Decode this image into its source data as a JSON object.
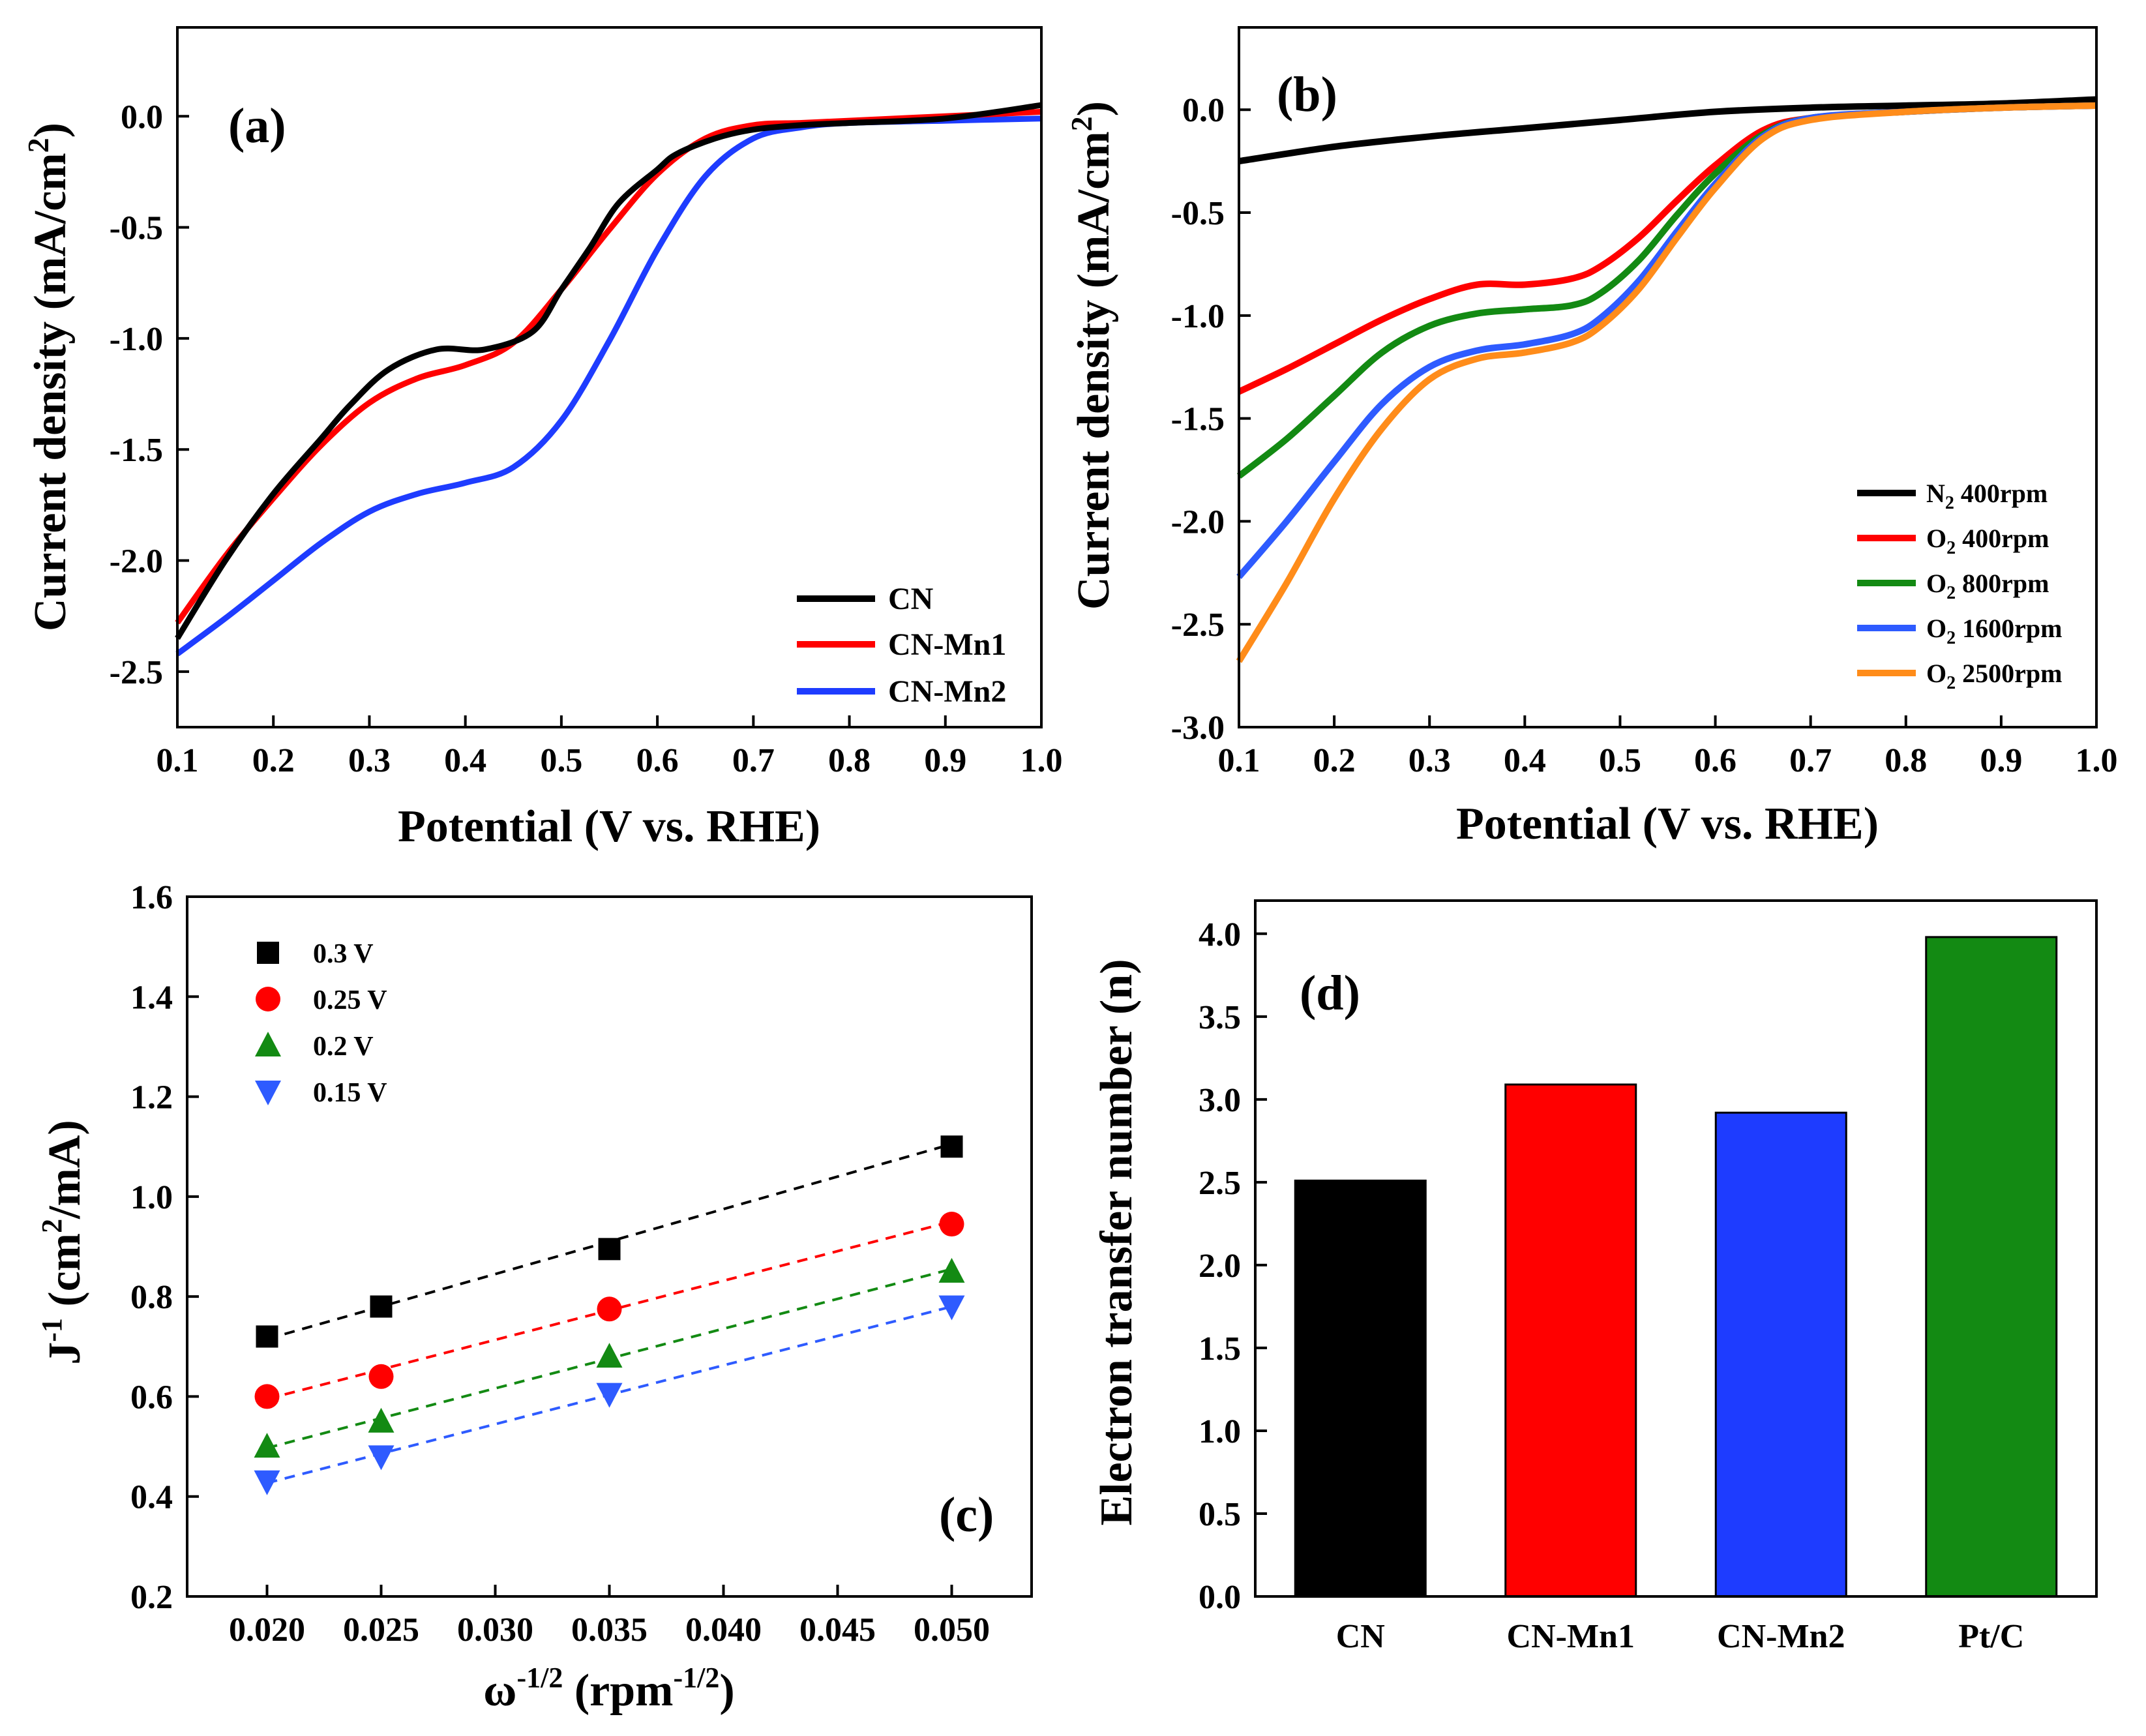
{
  "chart_data": [
    {
      "panel": "(a)",
      "type": "line",
      "xlabel": "Potential (V vs. RHE)",
      "ylabel": "Current density (mA/cm2)",
      "ylabel_text": "Current density (mA/cm",
      "ylabel_sup": "2",
      "ylabel_end": ")",
      "xlim": [
        0.1,
        1.0
      ],
      "ylim": [
        -2.75,
        0.4
      ],
      "xticks": [
        "0.1",
        "0.2",
        "0.3",
        "0.4",
        "0.5",
        "0.6",
        "0.7",
        "0.8",
        "0.9",
        "1.0"
      ],
      "xtick_values": [
        0.1,
        0.2,
        0.3,
        0.4,
        0.5,
        0.6,
        0.7,
        0.8,
        0.9,
        1.0
      ],
      "yticks": [
        "0.0",
        "-0.5",
        "-1.0",
        "-1.5",
        "-2.0",
        "-2.5"
      ],
      "ytick_values": [
        0.0,
        -0.5,
        -1.0,
        -1.5,
        -2.0,
        -2.5
      ],
      "legend_position": "bottom-right",
      "series": [
        {
          "name": "CN",
          "color": "#000000",
          "x": [
            0.1,
            0.15,
            0.2,
            0.25,
            0.28,
            0.32,
            0.37,
            0.42,
            0.47,
            0.5,
            0.53,
            0.56,
            0.6,
            0.62,
            0.66,
            0.7,
            0.75,
            0.8,
            0.9,
            1.0
          ],
          "y": [
            -2.35,
            -2.0,
            -1.7,
            -1.45,
            -1.3,
            -1.14,
            -1.05,
            -1.05,
            -0.97,
            -0.78,
            -0.59,
            -0.39,
            -0.24,
            -0.17,
            -0.1,
            -0.06,
            -0.04,
            -0.03,
            -0.01,
            0.05
          ]
        },
        {
          "name": "CN-Mn1",
          "color": "#ff0000",
          "x": [
            0.1,
            0.15,
            0.2,
            0.25,
            0.3,
            0.35,
            0.4,
            0.45,
            0.5,
            0.55,
            0.6,
            0.65,
            0.7,
            0.75,
            0.8,
            0.9,
            1.0
          ],
          "y": [
            -2.28,
            -1.98,
            -1.72,
            -1.48,
            -1.29,
            -1.18,
            -1.12,
            -1.02,
            -0.78,
            -0.51,
            -0.26,
            -0.1,
            -0.04,
            -0.03,
            -0.02,
            0.0,
            0.02
          ]
        },
        {
          "name": "CN-Mn2",
          "color": "#1e3cff",
          "x": [
            0.1,
            0.15,
            0.2,
            0.25,
            0.3,
            0.35,
            0.4,
            0.45,
            0.5,
            0.55,
            0.6,
            0.65,
            0.7,
            0.75,
            0.8,
            0.9,
            1.0
          ],
          "y": [
            -2.42,
            -2.26,
            -2.09,
            -1.92,
            -1.78,
            -1.7,
            -1.65,
            -1.58,
            -1.37,
            -1.01,
            -0.6,
            -0.27,
            -0.1,
            -0.05,
            -0.03,
            -0.02,
            -0.01
          ]
        }
      ]
    },
    {
      "panel": "(b)",
      "type": "line",
      "xlabel": "Potential (V vs. RHE)",
      "ylabel": "Current density (mA/cm2)",
      "ylabel_text": "Current density (mA/cm",
      "ylabel_sup": "2",
      "ylabel_end": ")",
      "xlim": [
        0.1,
        1.0
      ],
      "ylim": [
        -3.0,
        0.4
      ],
      "xticks": [
        "0.1",
        "0.2",
        "0.3",
        "0.4",
        "0.5",
        "0.6",
        "0.7",
        "0.8",
        "0.9",
        "1.0"
      ],
      "xtick_values": [
        0.1,
        0.2,
        0.3,
        0.4,
        0.5,
        0.6,
        0.7,
        0.8,
        0.9,
        1.0
      ],
      "yticks": [
        "0.0",
        "-0.5",
        "-1.0",
        "-1.5",
        "-2.0",
        "-2.5",
        "-3.0"
      ],
      "ytick_values": [
        0.0,
        -0.5,
        -1.0,
        -1.5,
        -2.0,
        -2.5,
        -3.0
      ],
      "legend_position": "bottom-right",
      "series": [
        {
          "name": "N2 400rpm",
          "label_gas": "N",
          "label_sub": "2",
          "label_rest": " 400rpm",
          "color": "#000000",
          "x": [
            0.1,
            0.2,
            0.3,
            0.4,
            0.5,
            0.6,
            0.7,
            0.8,
            0.9,
            1.0
          ],
          "y": [
            -0.25,
            -0.18,
            -0.13,
            -0.09,
            -0.05,
            -0.01,
            0.01,
            0.02,
            0.03,
            0.05
          ]
        },
        {
          "name": "O2 400rpm",
          "label_gas": "O",
          "label_sub": "2",
          "label_rest": " 400rpm",
          "color": "#ff0000",
          "x": [
            0.1,
            0.15,
            0.2,
            0.25,
            0.3,
            0.35,
            0.4,
            0.45,
            0.48,
            0.52,
            0.56,
            0.6,
            0.65,
            0.7,
            0.8,
            0.9,
            1.0
          ],
          "y": [
            -1.37,
            -1.26,
            -1.14,
            -1.02,
            -0.92,
            -0.85,
            -0.85,
            -0.82,
            -0.76,
            -0.62,
            -0.44,
            -0.27,
            -0.1,
            -0.04,
            -0.01,
            0.01,
            0.02
          ]
        },
        {
          "name": "O2 800rpm",
          "label_gas": "O",
          "label_sub": "2",
          "label_rest": " 800rpm",
          "color": "#138a13",
          "x": [
            0.1,
            0.15,
            0.2,
            0.25,
            0.3,
            0.35,
            0.4,
            0.45,
            0.48,
            0.52,
            0.56,
            0.6,
            0.65,
            0.7,
            0.8,
            0.9,
            1.0
          ],
          "y": [
            -1.78,
            -1.6,
            -1.39,
            -1.18,
            -1.05,
            -0.99,
            -0.97,
            -0.95,
            -0.89,
            -0.73,
            -0.51,
            -0.31,
            -0.12,
            -0.04,
            -0.01,
            0.01,
            0.02
          ]
        },
        {
          "name": "O2 1600rpm",
          "label_gas": "O",
          "label_sub": "2",
          "label_rest": " 1600rpm",
          "color": "#2e5bff",
          "x": [
            0.1,
            0.15,
            0.2,
            0.25,
            0.3,
            0.35,
            0.4,
            0.45,
            0.48,
            0.52,
            0.56,
            0.6,
            0.65,
            0.7,
            0.8,
            0.9,
            1.0
          ],
          "y": [
            -2.27,
            -2.0,
            -1.71,
            -1.43,
            -1.25,
            -1.17,
            -1.14,
            -1.09,
            -1.01,
            -0.83,
            -0.59,
            -0.36,
            -0.13,
            -0.04,
            -0.01,
            0.01,
            0.02
          ]
        },
        {
          "name": "O2 2500rpm",
          "label_gas": "O",
          "label_sub": "2",
          "label_rest": " 2500rpm",
          "color": "#ff8c1a",
          "x": [
            0.1,
            0.15,
            0.2,
            0.25,
            0.3,
            0.35,
            0.4,
            0.45,
            0.48,
            0.52,
            0.56,
            0.6,
            0.65,
            0.7,
            0.8,
            0.9,
            1.0
          ],
          "y": [
            -2.68,
            -2.3,
            -1.89,
            -1.55,
            -1.31,
            -1.21,
            -1.18,
            -1.13,
            -1.05,
            -0.87,
            -0.62,
            -0.38,
            -0.14,
            -0.05,
            -0.01,
            0.01,
            0.02
          ]
        }
      ]
    },
    {
      "panel": "(c)",
      "type": "scatter",
      "xlabel": "ω-1/2 (rpm-1/2)",
      "xlabel_omega": "ω",
      "xlabel_sup": "-1/2",
      "xlabel_mid": " (rpm",
      "xlabel_sup2": "-1/2",
      "xlabel_end": ")",
      "ylabel": "J-1 (cm2/mA)",
      "ylabel_J": "J",
      "ylabel_sup": "-1",
      "ylabel_mid": " (cm",
      "ylabel_sup2": "2",
      "ylabel_end": "/mA)",
      "xlim": [
        0.0165,
        0.0535
      ],
      "ylim": [
        0.2,
        1.6
      ],
      "xticks": [
        "0.020",
        "0.025",
        "0.030",
        "0.035",
        "0.040",
        "0.045",
        "0.050"
      ],
      "xtick_values": [
        0.02,
        0.025,
        0.03,
        0.035,
        0.04,
        0.045,
        0.05
      ],
      "yticks": [
        "0.2",
        "0.4",
        "0.6",
        "0.8",
        "1.0",
        "1.2",
        "1.4",
        "1.6"
      ],
      "ytick_values": [
        0.2,
        0.4,
        0.6,
        0.8,
        1.0,
        1.2,
        1.4,
        1.6
      ],
      "legend_position": "top-left",
      "x": [
        0.02,
        0.025,
        0.035,
        0.05
      ],
      "series": [
        {
          "name": "0.3 V",
          "color": "#000000",
          "marker": "square",
          "values": [
            0.72,
            0.78,
            0.895,
            1.1
          ],
          "fit": [
            0.715,
            1.105
          ]
        },
        {
          "name": "0.25 V",
          "color": "#ff0000",
          "marker": "circle",
          "values": [
            0.6,
            0.64,
            0.775,
            0.945
          ],
          "fit": [
            0.595,
            0.95
          ]
        },
        {
          "name": "0.2 V",
          "color": "#138a13",
          "marker": "triangle-up",
          "values": [
            0.5,
            0.55,
            0.68,
            0.85
          ],
          "fit": [
            0.497,
            0.855
          ]
        },
        {
          "name": "0.15 V",
          "color": "#2e5bff",
          "marker": "triangle-down",
          "values": [
            0.43,
            0.48,
            0.605,
            0.78
          ],
          "fit": [
            0.427,
            0.78
          ]
        }
      ]
    },
    {
      "panel": "(d)",
      "type": "bar",
      "xlabel": "",
      "ylabel": "Electron transfer number (n)",
      "categories": [
        "CN",
        "CN-Mn1",
        "CN-Mn2",
        "Pt/C"
      ],
      "values": [
        2.51,
        3.09,
        2.92,
        3.98
      ],
      "colors": [
        "#000000",
        "#ff0000",
        "#1e3cff",
        "#138a13"
      ],
      "ylim": [
        0.0,
        4.2
      ],
      "yticks": [
        "0.0",
        "0.5",
        "1.0",
        "1.5",
        "2.0",
        "2.5",
        "3.0",
        "3.5",
        "4.0"
      ],
      "ytick_values": [
        0.0,
        0.5,
        1.0,
        1.5,
        2.0,
        2.5,
        3.0,
        3.5,
        4.0
      ]
    }
  ]
}
